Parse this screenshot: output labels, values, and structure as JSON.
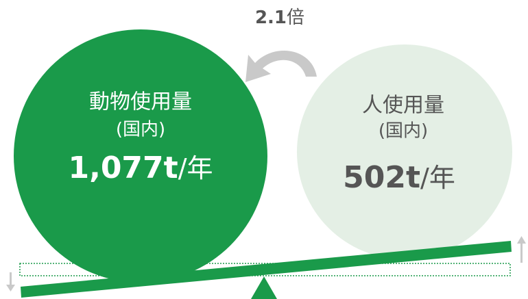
{
  "ratio": {
    "number": "2.1",
    "unit": "倍"
  },
  "animal": {
    "title": "動物使用量",
    "subtitle": "(国内)",
    "amount": "1,077t",
    "per": "/年"
  },
  "human": {
    "title": "人使用量",
    "subtitle": "(国内)",
    "amount": "502t",
    "per": "/年"
  }
}
